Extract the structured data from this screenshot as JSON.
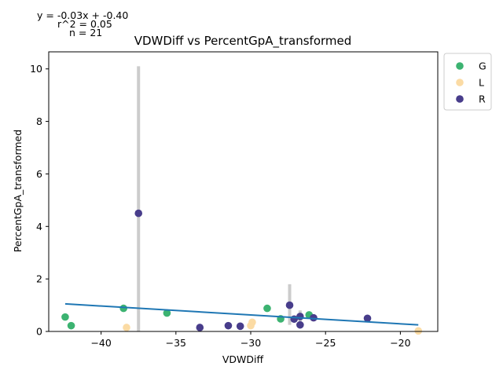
{
  "chart_data": {
    "type": "scatter",
    "title": "VDWDiff vs PercentGpA_transformed",
    "xlabel": "VDWDiff",
    "ylabel": "PercentGpA_transformed",
    "xlim": [
      -43.5,
      -17.5
    ],
    "ylim": [
      0,
      10.65
    ],
    "x_ticks": [
      -40,
      -35,
      -30,
      -25,
      -20
    ],
    "x_tick_labels": [
      "−40",
      "−35",
      "−30",
      "−25",
      "−20"
    ],
    "y_ticks": [
      0,
      2,
      4,
      6,
      8,
      10
    ],
    "y_tick_labels": [
      "0",
      "2",
      "4",
      "6",
      "8",
      "10"
    ],
    "grid": false,
    "legend_position": "outside-top-right",
    "annotations": {
      "equation": "y = -0.03x + -0.40",
      "r2": "r^2 = 0.05",
      "n": "n = 21"
    },
    "regression": {
      "slope": -0.03,
      "intercept": -0.4,
      "x_range": [
        -42.4,
        -18.8
      ],
      "y_range": [
        1.05,
        0.25
      ],
      "color": "#1f77b4"
    },
    "series": [
      {
        "name": "G",
        "color": "#3cb371",
        "points": [
          {
            "x": -42.4,
            "y": 0.55
          },
          {
            "x": -42.0,
            "y": 0.22
          },
          {
            "x": -38.5,
            "y": 0.88
          },
          {
            "x": -35.6,
            "y": 0.7
          },
          {
            "x": -28.9,
            "y": 0.88
          },
          {
            "x": -28.0,
            "y": 0.48
          },
          {
            "x": -26.1,
            "y": 0.63
          }
        ]
      },
      {
        "name": "L",
        "color": "#fbdba4",
        "points": [
          {
            "x": -38.3,
            "y": 0.15
          },
          {
            "x": -30.0,
            "y": 0.22
          },
          {
            "x": -29.9,
            "y": 0.35
          },
          {
            "x": -18.8,
            "y": 0.02
          }
        ]
      },
      {
        "name": "R",
        "color": "#483d8b",
        "points": [
          {
            "x": -37.5,
            "y": 4.5
          },
          {
            "x": -33.4,
            "y": 0.15
          },
          {
            "x": -31.5,
            "y": 0.22
          },
          {
            "x": -30.7,
            "y": 0.2
          },
          {
            "x": -27.4,
            "y": 1.0
          },
          {
            "x": -27.1,
            "y": 0.47
          },
          {
            "x": -26.7,
            "y": 0.57
          },
          {
            "x": -26.7,
            "y": 0.25
          },
          {
            "x": -25.8,
            "y": 0.52
          },
          {
            "x": -22.2,
            "y": 0.5
          }
        ]
      }
    ],
    "error_bars": {
      "color": "#cccccc",
      "bars": [
        {
          "x": -37.5,
          "y_low": 0.0,
          "y_high": 10.1
        },
        {
          "x": -27.4,
          "y_low": 0.25,
          "y_high": 1.8
        },
        {
          "x": -26.7,
          "y_low": 0.35,
          "y_high": 0.8
        },
        {
          "x": -29.9,
          "y_low": 0.15,
          "y_high": 0.45
        }
      ]
    }
  }
}
